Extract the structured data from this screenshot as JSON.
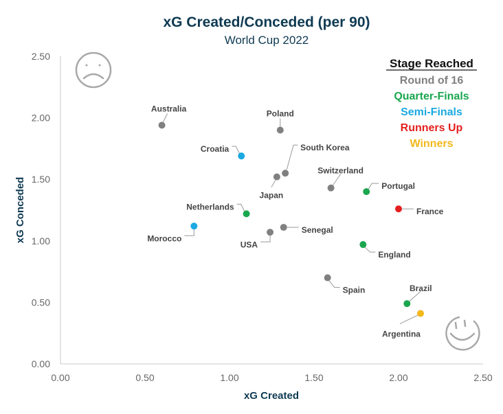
{
  "chart_data": {
    "type": "scatter",
    "title": "xG Created/Conceded (per 90)",
    "subtitle": "World Cup 2022",
    "xlabel": "xG Created",
    "ylabel": "xG Conceded",
    "xlim": [
      0,
      2.5
    ],
    "ylim": [
      0,
      2.5
    ],
    "xticks": [
      "0.00",
      "0.50",
      "1.00",
      "1.50",
      "2.00",
      "2.50"
    ],
    "yticks": [
      "0.00",
      "0.50",
      "1.00",
      "1.50",
      "2.00",
      "2.50"
    ],
    "grid": false,
    "legend": {
      "title": "Stage Reached",
      "placement": "top-right",
      "entries": [
        {
          "name": "Round of 16",
          "color": "#808080"
        },
        {
          "name": "Quarter-Finals",
          "color": "#1aa64e"
        },
        {
          "name": "Semi-Finals",
          "color": "#1aa9e0"
        },
        {
          "name": "Runners Up",
          "color": "#e41e1e"
        },
        {
          "name": "Winners",
          "color": "#f2b81c"
        }
      ]
    },
    "annotations": [
      "sad-face (top-left: bad)",
      "smiley-face (bottom-right: good)"
    ],
    "points": [
      {
        "team": "Australia",
        "x": 0.6,
        "y": 1.94,
        "stage": "Round of 16",
        "label_pos": "above"
      },
      {
        "team": "Poland",
        "x": 1.3,
        "y": 1.9,
        "stage": "Round of 16",
        "label_pos": "above"
      },
      {
        "team": "Croatia",
        "x": 1.07,
        "y": 1.69,
        "stage": "Semi-Finals",
        "label_pos": "left-up"
      },
      {
        "team": "South Korea",
        "x": 1.33,
        "y": 1.55,
        "stage": "Round of 16",
        "label_pos": "right-up"
      },
      {
        "team": "Japan",
        "x": 1.28,
        "y": 1.52,
        "stage": "Round of 16",
        "label_pos": "below"
      },
      {
        "team": "Switzerland",
        "x": 1.6,
        "y": 1.43,
        "stage": "Round of 16",
        "label_pos": "above"
      },
      {
        "team": "Portugal",
        "x": 1.81,
        "y": 1.4,
        "stage": "Quarter-Finals",
        "label_pos": "right-up"
      },
      {
        "team": "France",
        "x": 2.0,
        "y": 1.26,
        "stage": "Runners Up",
        "label_pos": "right"
      },
      {
        "team": "Netherlands",
        "x": 1.1,
        "y": 1.22,
        "stage": "Quarter-Finals",
        "label_pos": "left-up"
      },
      {
        "team": "Morocco",
        "x": 0.79,
        "y": 1.12,
        "stage": "Semi-Finals",
        "label_pos": "left-down"
      },
      {
        "team": "Senegal",
        "x": 1.32,
        "y": 1.11,
        "stage": "Round of 16",
        "label_pos": "right"
      },
      {
        "team": "USA",
        "x": 1.24,
        "y": 1.07,
        "stage": "Round of 16",
        "label_pos": "left-down"
      },
      {
        "team": "England",
        "x": 1.79,
        "y": 0.97,
        "stage": "Quarter-Finals",
        "label_pos": "right-down"
      },
      {
        "team": "Spain",
        "x": 1.58,
        "y": 0.7,
        "stage": "Round of 16",
        "label_pos": "right-down"
      },
      {
        "team": "Brazil",
        "x": 2.05,
        "y": 0.49,
        "stage": "Quarter-Finals",
        "label_pos": "right-up"
      },
      {
        "team": "Argentina",
        "x": 2.13,
        "y": 0.41,
        "stage": "Winners",
        "label_pos": "left-down"
      }
    ]
  }
}
